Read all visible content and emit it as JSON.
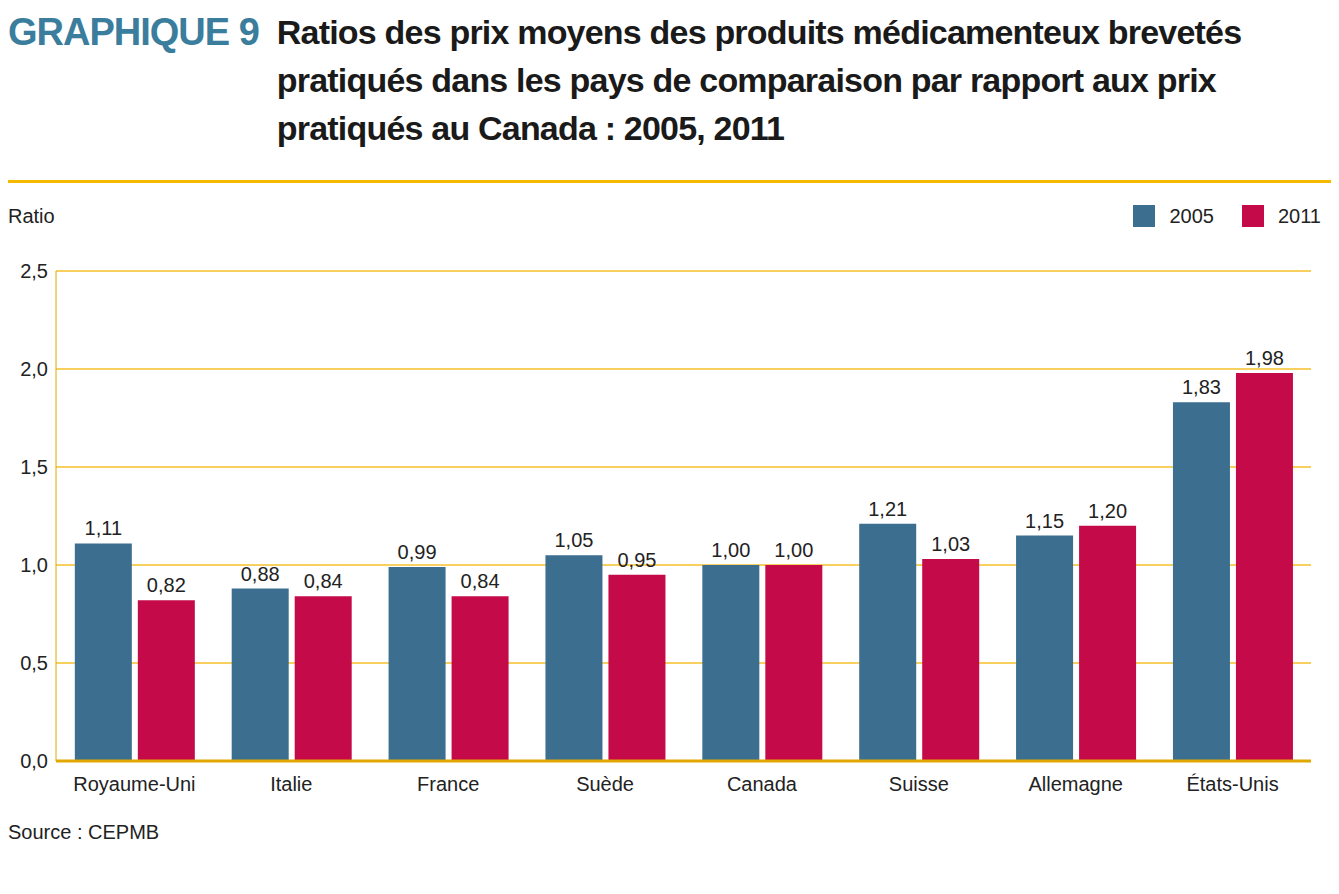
{
  "chart_data": {
    "type": "bar",
    "title": "GRAPHIQUE 9",
    "subtitle": "Ratios des prix moyens des produits médicamenteux brevetés pratiqués dans les pays de comparaison par rapport aux prix pratiqués au Canada : 2005, 2011",
    "y_label": "Ratio",
    "source": "Source : CEPMB",
    "categories": [
      "Royaume-Uni",
      "Italie",
      "France",
      "Suède",
      "Canada",
      "Suisse",
      "Allemagne",
      "États-Unis"
    ],
    "series": [
      {
        "name": "2005",
        "color": "#3b6e8f",
        "values": [
          1.11,
          0.88,
          0.99,
          1.05,
          1.0,
          1.21,
          1.15,
          1.83
        ],
        "value_labels": [
          "1,11",
          "0,88",
          "0,99",
          "1,05",
          "1,00",
          "1,21",
          "1,15",
          "1,83"
        ]
      },
      {
        "name": "2011",
        "color": "#c40a48",
        "values": [
          0.82,
          0.84,
          0.84,
          0.95,
          1.0,
          1.03,
          1.2,
          1.98
        ],
        "value_labels": [
          "0,82",
          "0,84",
          "0,84",
          "0,95",
          "1,00",
          "1,03",
          "1,20",
          "1,98"
        ]
      }
    ],
    "ylim": [
      0,
      2.5
    ],
    "yticks": [
      {
        "value": 0,
        "label": "0,0"
      },
      {
        "value": 0.5,
        "label": "0,5"
      },
      {
        "value": 1,
        "label": "1,0"
      },
      {
        "value": 1.5,
        "label": "1,5"
      },
      {
        "value": 2,
        "label": "2,0"
      },
      {
        "value": 2.5,
        "label": "2,5"
      }
    ],
    "grid": true,
    "legend": "top-right",
    "data_labels": true
  }
}
